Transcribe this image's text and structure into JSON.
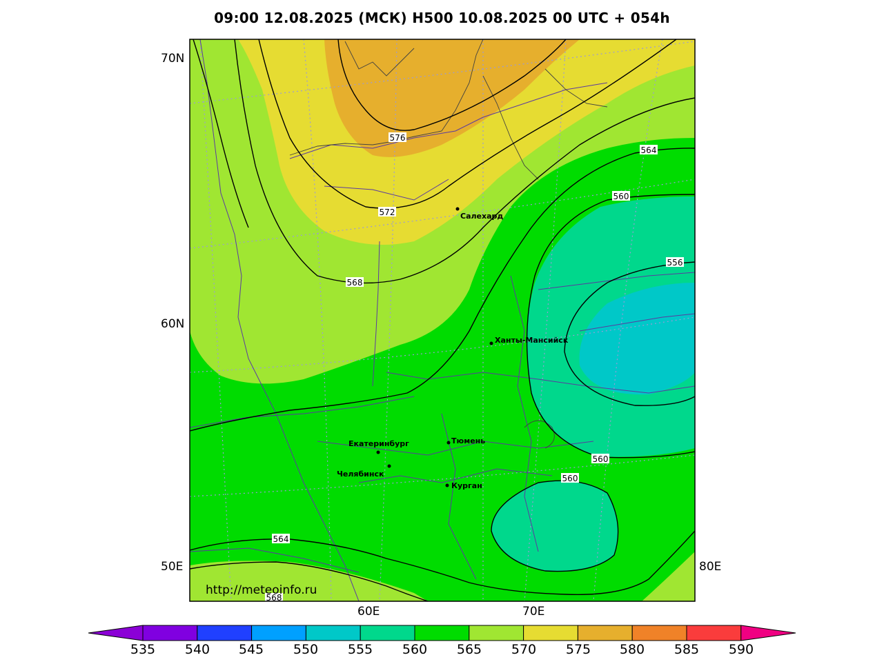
{
  "title": "09:00 12.08.2025 (МСК) H500  10.08.2025 00 UTC + 054h",
  "map": {
    "lat_labels": [
      "70N",
      "60N",
      "50E"
    ],
    "lon_labels": [
      "60E",
      "70E",
      "80E"
    ],
    "url": "http://meteoinfo.ru",
    "cities": [
      {
        "name": "Салехард"
      },
      {
        "name": "Ханты-Мансийск"
      },
      {
        "name": "Екатеринбург"
      },
      {
        "name": "Тюмень"
      },
      {
        "name": "Челябинск"
      },
      {
        "name": "Курган"
      }
    ],
    "isoline_labels": [
      "576",
      "572",
      "568",
      "564",
      "560",
      "556",
      "560",
      "560",
      "564",
      "568"
    ]
  },
  "colorbar": {
    "ticks": [
      "535",
      "540",
      "545",
      "550",
      "555",
      "560",
      "565",
      "570",
      "575",
      "580",
      "585",
      "590"
    ],
    "colors": [
      "#8b00d6",
      "#8000e0",
      "#2040ff",
      "#00a0ff",
      "#00c8c8",
      "#00d88c",
      "#00dc00",
      "#a0e632",
      "#e6dc32",
      "#e6af2d",
      "#f08228",
      "#fa3c3c",
      "#f00082"
    ]
  }
}
